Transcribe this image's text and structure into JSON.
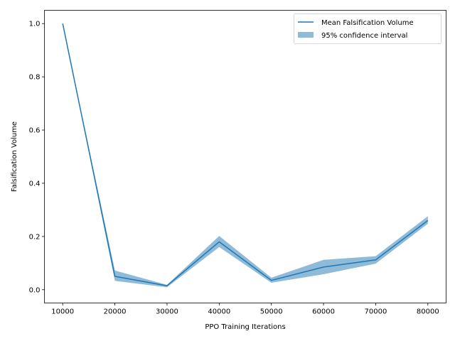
{
  "chart_data": {
    "type": "line",
    "title": "",
    "xlabel": "PPO Training Iterations",
    "ylabel": "Falsification Volume",
    "xlim": [
      6500,
      83500
    ],
    "ylim": [
      -0.05,
      1.05
    ],
    "xticks": [
      10000,
      20000,
      30000,
      40000,
      50000,
      60000,
      70000,
      80000
    ],
    "xtick_labels": [
      "10000",
      "20000",
      "30000",
      "40000",
      "50000",
      "60000",
      "70000",
      "80000"
    ],
    "yticks": [
      0.0,
      0.2,
      0.4,
      0.6,
      0.8,
      1.0
    ],
    "ytick_labels": [
      "0.0",
      "0.2",
      "0.4",
      "0.6",
      "0.8",
      "1.0"
    ],
    "grid": false,
    "legend_position": "top-right",
    "series": [
      {
        "name": "Mean Falsification Volume",
        "color": "#1f77b4",
        "x": [
          10000,
          20000,
          30000,
          40000,
          50000,
          60000,
          70000,
          80000
        ],
        "values": [
          1.0,
          0.05,
          0.015,
          0.18,
          0.035,
          0.085,
          0.112,
          0.26
        ],
        "ci_lower": [
          1.0,
          0.033,
          0.009,
          0.16,
          0.026,
          0.058,
          0.098,
          0.248
        ],
        "ci_upper": [
          1.0,
          0.072,
          0.018,
          0.202,
          0.045,
          0.112,
          0.126,
          0.276
        ]
      }
    ],
    "band": {
      "name": "95% confidence interval",
      "color": "#1f77b4",
      "opacity": 0.5
    }
  }
}
